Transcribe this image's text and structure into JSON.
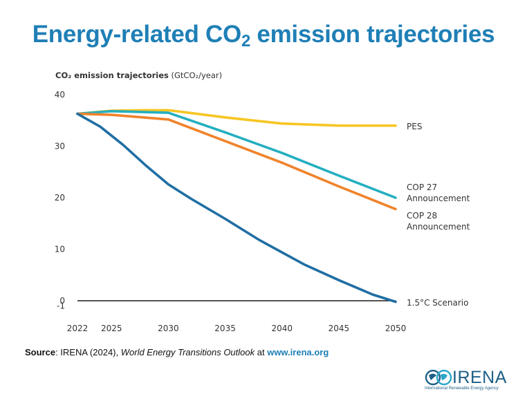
{
  "slide": {
    "title_main": "Energy-related CO",
    "title_sub": "2",
    "title_rest": " emission trajectories"
  },
  "chart_data": {
    "type": "line",
    "ylabel_bold": "CO₂ emission trajectories",
    "ylabel_unit": " (GtCO₂/year)",
    "xlim": [
      2022,
      2050
    ],
    "ylim": [
      -1,
      40
    ],
    "x_ticks": [
      2022,
      2025,
      2030,
      2035,
      2040,
      2045,
      2050
    ],
    "y_ticks": [
      40,
      30,
      20,
      10,
      0,
      -1
    ],
    "grid": false,
    "series": [
      {
        "name": "PES",
        "color": "#f6c623",
        "x": [
          2022,
          2025,
          2028,
          2030,
          2035,
          2040,
          2045,
          2050
        ],
        "y": [
          36.3,
          36.9,
          37.0,
          37.0,
          35.6,
          34.4,
          34.0,
          34.0
        ]
      },
      {
        "name": "COP 27 Announcement",
        "color": "#24afc0",
        "x": [
          2022,
          2025,
          2030,
          2035,
          2040,
          2045,
          2050
        ],
        "y": [
          36.3,
          36.8,
          36.5,
          32.7,
          28.7,
          24.3,
          20.0
        ]
      },
      {
        "name": "COP 28 Announcement",
        "color": "#f0832b",
        "x": [
          2022,
          2025,
          2030,
          2035,
          2040,
          2045,
          2050
        ],
        "y": [
          36.3,
          36.1,
          35.2,
          31.0,
          26.8,
          22.2,
          17.8
        ]
      },
      {
        "name": "1.5°C Scenario",
        "color": "#1f6ea3",
        "x": [
          2022,
          2024,
          2026,
          2028,
          2030,
          2032,
          2035,
          2038,
          2040,
          2042,
          2045,
          2048,
          2050
        ],
        "y": [
          36.3,
          33.8,
          30.3,
          26.3,
          22.6,
          19.8,
          15.9,
          11.8,
          9.4,
          7.0,
          4.0,
          1.2,
          -0.2
        ]
      }
    ],
    "label_lines": {
      "PES": [
        "PES"
      ],
      "COP 27 Announcement": [
        "COP 27",
        "Announcement"
      ],
      "COP 28 Announcement": [
        "COP 28",
        "Announcement"
      ],
      "1.5°C Scenario": [
        "1.5°C Scenario"
      ]
    }
  },
  "source": {
    "prefix": "Source",
    "text": ": IRENA (2024), ",
    "title": "World Energy Transitions Outlook",
    "at": " at ",
    "link": "www.irena.org"
  },
  "logo": {
    "word": "IRENA",
    "tagline": "International Renewable Energy Agency"
  }
}
